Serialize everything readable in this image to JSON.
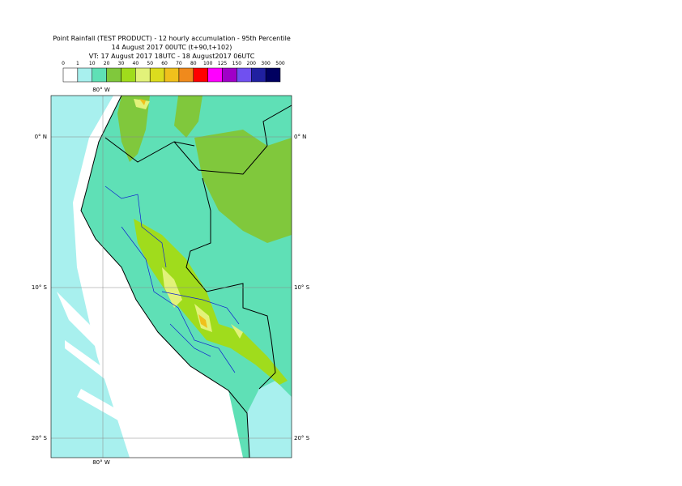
{
  "header": {
    "title": "Point Rainfall (TEST PRODUCT) - 12 hourly accumulation - 95th Percentile",
    "line2": "14 August 2017 00UTC (t+90,t+102)",
    "line3": "VT: 17 August 2017 18UTC - 18 August2017 06UTC"
  },
  "legend": {
    "levels": [
      0,
      1,
      10,
      20,
      30,
      40,
      50,
      60,
      70,
      80,
      100,
      125,
      150,
      200,
      300,
      500
    ],
    "colors": [
      "#ffffff",
      "#a8f0ee",
      "#5fe0b6",
      "#80c83c",
      "#a0dc1c",
      "#e2f27a",
      "#dcdc1e",
      "#f0c01c",
      "#f08a1c",
      "#ff0000",
      "#ff00ff",
      "#a000c8",
      "#7050f0",
      "#2020a0",
      "#000060"
    ]
  },
  "map": {
    "lon_labels": [
      "80° W"
    ],
    "lat_labels": [
      "0° N",
      "10° S",
      "20° S"
    ]
  }
}
